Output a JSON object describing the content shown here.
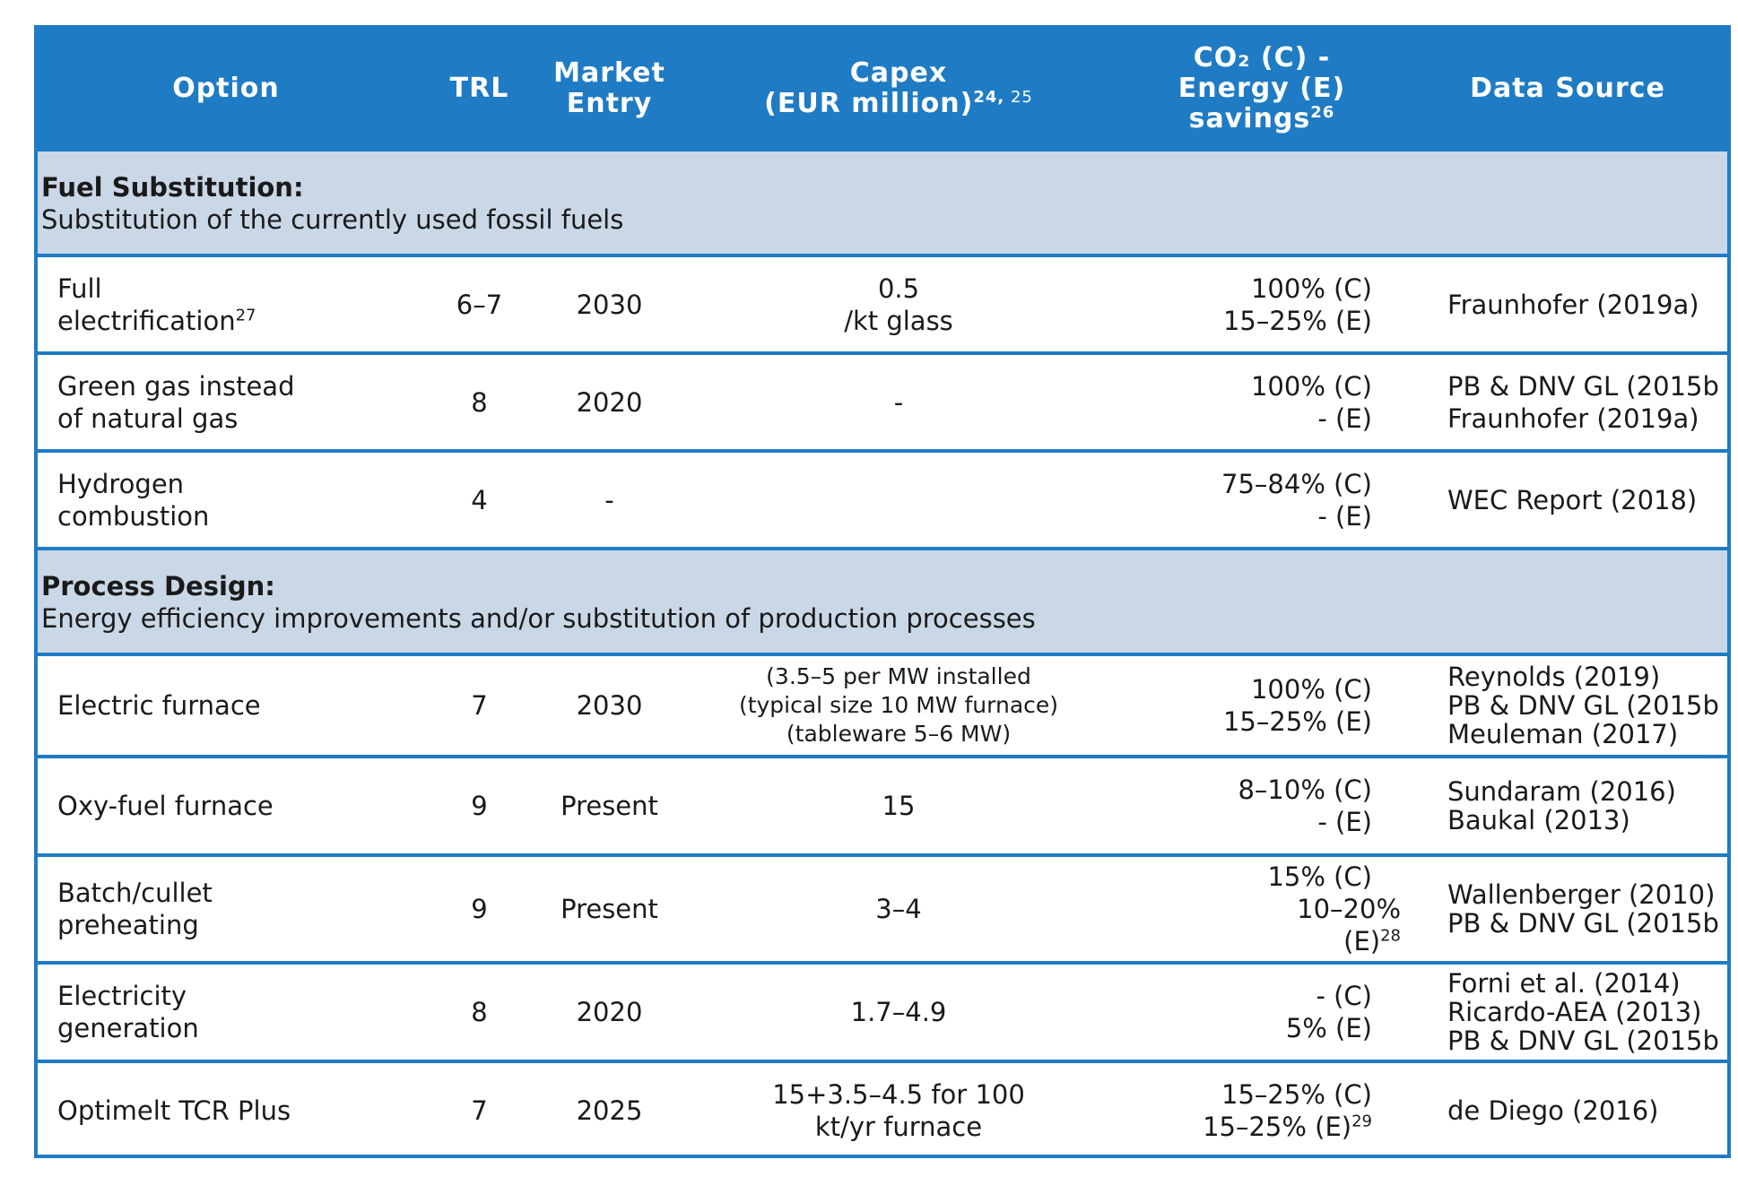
{
  "header": {
    "option": "Option",
    "trl": "TRL",
    "market_line1": "Market",
    "market_line2": "Entry",
    "capex_line1": "Capex",
    "capex_line2": "(EUR million)",
    "capex_sup1": "24,",
    "capex_sup2": " 25",
    "co2_line1": "CO₂ (C) -",
    "co2_line2": "Energy (E)",
    "co2_line3": "savings",
    "co2_sup": "26",
    "source": "Data Source"
  },
  "sections": [
    {
      "title": "Fuel Substitution:",
      "subtitle": "Substitution of the currently used fossil fuels",
      "rows": [
        {
          "option": [
            "Full",
            "electrification"
          ],
          "option_sup": "27",
          "trl": "6–7",
          "market": "2030",
          "capex": [
            "0.5",
            "/kt glass"
          ],
          "savings": [
            "100% (C)",
            "15–25% (E)"
          ],
          "sources": [
            "Fraunhofer (2019a)"
          ]
        },
        {
          "option": [
            "Green gas instead",
            "of natural gas"
          ],
          "trl": "8",
          "market": "2020",
          "capex": [
            "-"
          ],
          "savings": [
            "100% (C)",
            "- (E)"
          ],
          "sources": [
            "PB & DNV GL (2015b",
            "Fraunhofer (2019a)"
          ]
        },
        {
          "option": [
            "Hydrogen",
            "combustion"
          ],
          "trl": "4",
          "market": "-",
          "capex": [
            ""
          ],
          "savings": [
            "75–84% (C)",
            "- (E)"
          ],
          "sources": [
            "WEC Report (2018)"
          ]
        }
      ]
    },
    {
      "title": "Process Design:",
      "subtitle": "Energy efficiency improvements and/or substitution of production processes",
      "rows": [
        {
          "option": [
            "Electric furnace"
          ],
          "trl": "7",
          "market": "2030",
          "capex": [
            "(3.5–5 per MW installed",
            "(typical size 10 MW furnace)",
            "(tableware 5–6 MW)"
          ],
          "savings": [
            "100% (C)",
            "15–25% (E)"
          ],
          "sources": [
            "Reynolds (2019)",
            "PB & DNV GL (2015b",
            "Meuleman (2017)"
          ]
        },
        {
          "option": [
            "Oxy-fuel furnace"
          ],
          "trl": "9",
          "market": "Present",
          "capex": [
            "15"
          ],
          "savings": [
            "8–10% (C)",
            "- (E)"
          ],
          "sources": [
            "Sundaram (2016)",
            "Baukal (2013)"
          ]
        },
        {
          "option": [
            "Batch/cullet",
            "preheating"
          ],
          "trl": "9",
          "market": "Present",
          "capex": [
            "3–4"
          ],
          "savings": [
            "15% (C)",
            "10–20%",
            "(E)"
          ],
          "savings_sup": "28",
          "sources": [
            "Wallenberger (2010)",
            "PB & DNV GL (2015b"
          ]
        },
        {
          "option": [
            "Electricity",
            "generation"
          ],
          "trl": "8",
          "market": "2020",
          "capex": [
            "1.7–4.9"
          ],
          "savings": [
            "- (C)",
            "5% (E)"
          ],
          "sources": [
            "Forni et al. (2014)",
            "Ricardo-AEA (2013)",
            "PB & DNV GL (2015b"
          ]
        },
        {
          "option": [
            "Optimelt TCR Plus"
          ],
          "trl": "7",
          "market": "2025",
          "capex": [
            "15+3.5–4.5 for 100",
            "kt/yr furnace"
          ],
          "savings": [
            "15–25% (C)",
            "15–25% (E)"
          ],
          "savings_sup": "29",
          "sources": [
            "de Diego (2016)"
          ]
        }
      ]
    }
  ]
}
